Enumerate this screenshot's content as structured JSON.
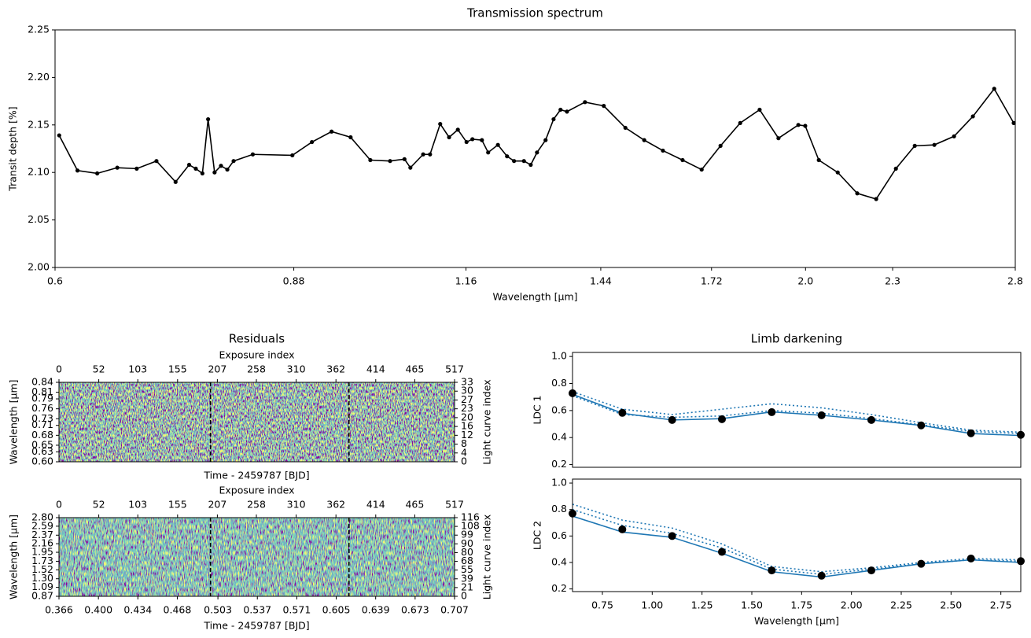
{
  "chart_data": [
    {
      "type": "line",
      "title": "Transmission spectrum",
      "xlabel": "Wavelength [μm]",
      "ylabel": "Transit depth [%]",
      "xscale": "log",
      "xlim": [
        0.6,
        2.8
      ],
      "xticks": [
        0.6,
        0.88,
        1.16,
        1.44,
        1.72,
        {
          "value": 2,
          "label": "2.0"
        },
        2.3,
        2.8
      ],
      "ylim": [
        2,
        2.25
      ],
      "yticks": [
        {
          "value": 2,
          "label": "2.00"
        },
        2.05,
        {
          "value": 2.1,
          "label": "2.10"
        },
        2.15,
        {
          "value": 2.2,
          "label": "2.20"
        },
        2.25
      ],
      "color": "#000000",
      "x": [
        0.604,
        0.622,
        0.642,
        0.663,
        0.684,
        0.706,
        0.728,
        0.744,
        0.752,
        0.76,
        0.767,
        0.775,
        0.783,
        0.791,
        0.799,
        0.824,
        0.878,
        0.906,
        0.935,
        0.964,
        0.995,
        1.027,
        1.051,
        1.061,
        1.083,
        1.095,
        1.113,
        1.129,
        1.145,
        1.161,
        1.172,
        1.19,
        1.202,
        1.221,
        1.239,
        1.253,
        1.273,
        1.287,
        1.3,
        1.318,
        1.335,
        1.35,
        1.364,
        1.404,
        1.447,
        1.498,
        1.544,
        1.591,
        1.642,
        1.693,
        1.745,
        1.801,
        1.858,
        1.915,
        1.977,
        1.999,
        2.043,
        2.106,
        2.173,
        2.24,
        2.312,
        2.383,
        2.459,
        2.538,
        2.616,
        2.707,
        2.793
      ],
      "values": [
        2.139,
        2.102,
        2.099,
        2.105,
        2.104,
        2.112,
        2.09,
        2.108,
        2.104,
        2.099,
        2.156,
        2.1,
        2.107,
        2.103,
        2.112,
        2.119,
        2.118,
        2.132,
        2.143,
        2.137,
        2.113,
        2.112,
        2.114,
        2.105,
        2.119,
        2.119,
        2.151,
        2.137,
        2.145,
        2.132,
        2.135,
        2.134,
        2.121,
        2.129,
        2.117,
        2.112,
        2.112,
        2.108,
        2.121,
        2.134,
        2.156,
        2.166,
        2.164,
        2.174,
        2.17,
        2.147,
        2.134,
        2.123,
        2.113,
        2.103,
        2.128,
        2.152,
        2.166,
        2.136,
        2.15,
        2.149,
        2.113,
        2.1,
        2.078,
        2.072,
        2.104,
        2.128,
        2.129,
        2.138,
        2.159,
        2.188,
        2.152
      ]
    },
    {
      "type": "heatmap",
      "title": "Residuals",
      "xlabel": "Time - 2459787 [BJD]",
      "x2label": "Exposure index",
      "ylabel": "Wavelength [μm]",
      "y2label": "Light curve index",
      "x2lim": [
        0,
        517
      ],
      "x2ticks": [
        0,
        52,
        103,
        155,
        207,
        258,
        310,
        362,
        414,
        465,
        517
      ],
      "ylim": [
        0.6,
        0.84
      ],
      "yticks": [
        {
          "value": 0.6,
          "label": "0.60"
        },
        0.63,
        0.65,
        0.68,
        0.71,
        0.73,
        0.76,
        0.79,
        0.81,
        0.84
      ],
      "y2ticks": [
        0,
        4,
        8,
        12,
        16,
        20,
        23,
        27,
        30,
        33
      ],
      "vlines": [
        198,
        379
      ]
    },
    {
      "type": "heatmap",
      "xlabel": "Time - 2459787 [BJD]",
      "x2label": "Exposure index",
      "ylabel": "Wavelength [μm]",
      "y2label": "Light curve index",
      "xlim": [
        0.366,
        0.707
      ],
      "xticks": [
        0.366,
        {
          "value": 0.4,
          "label": "0.400"
        },
        0.434,
        0.468,
        0.503,
        0.537,
        0.571,
        0.605,
        0.639,
        0.673,
        0.707
      ],
      "x2lim": [
        0,
        517
      ],
      "x2ticks": [
        0,
        52,
        103,
        155,
        207,
        258,
        310,
        362,
        414,
        465,
        517
      ],
      "ylim": [
        0.87,
        2.8
      ],
      "yticks": [
        0.87,
        1.09,
        {
          "value": 1.3,
          "label": "1.30"
        },
        1.52,
        1.73,
        1.95,
        2.16,
        2.37,
        2.59,
        {
          "value": 2.8,
          "label": "2.80"
        }
      ],
      "y2ticks": [
        0,
        21,
        39,
        55,
        68,
        80,
        90,
        99,
        108,
        116
      ],
      "vlines": [
        198,
        379
      ]
    },
    {
      "type": "line",
      "title": "Limb darkening",
      "ylabel": "LDC 1",
      "xlim": [
        0.6,
        2.85
      ],
      "ylim": [
        0.18,
        1.03
      ],
      "yticks": [
        0.2,
        0.4,
        0.6,
        0.8,
        {
          "value": 1,
          "label": "1.0"
        }
      ],
      "x": [
        0.6,
        0.85,
        1.1,
        1.35,
        1.6,
        1.85,
        2.1,
        2.35,
        2.6,
        2.85
      ],
      "series": [
        {
          "style": "dotted",
          "color": "#1f77b4",
          "values": [
            0.74,
            0.61,
            0.57,
            0.61,
            0.65,
            0.62,
            0.57,
            0.51,
            0.455,
            0.44
          ]
        },
        {
          "style": "dotted",
          "color": "#1f77b4",
          "values": [
            0.71,
            0.57,
            0.55,
            0.56,
            0.6,
            0.58,
            0.54,
            0.495,
            0.445,
            0.43
          ]
        },
        {
          "style": "solid",
          "color": "#1f77b4",
          "values": [
            0.72,
            0.58,
            0.53,
            0.54,
            0.59,
            0.565,
            0.53,
            0.49,
            0.43,
            0.415
          ]
        },
        {
          "style": "markers",
          "color": "#000000",
          "values": [
            0.728,
            0.583,
            0.53,
            0.536,
            0.588,
            0.565,
            0.53,
            0.49,
            0.432,
            0.42
          ]
        }
      ]
    },
    {
      "type": "line",
      "xlabel": "Wavelength [μm]",
      "ylabel": "LDC 2",
      "xlim": [
        0.6,
        2.85
      ],
      "ylim": [
        0.18,
        1.03
      ],
      "xticks": [
        0.75,
        {
          "value": 1,
          "label": "1.00"
        },
        1.25,
        {
          "value": 1.5,
          "label": "1.50"
        },
        1.75,
        {
          "value": 2,
          "label": "2.00"
        },
        2.25,
        {
          "value": 2.5,
          "label": "2.50"
        },
        2.75
      ],
      "yticks": [
        0.2,
        0.4,
        0.6,
        0.8,
        {
          "value": 1,
          "label": "1.0"
        }
      ],
      "x": [
        0.6,
        0.85,
        1.1,
        1.35,
        1.6,
        1.85,
        2.1,
        2.35,
        2.6,
        2.85
      ],
      "series": [
        {
          "style": "dotted",
          "color": "#1f77b4",
          "values": [
            0.84,
            0.72,
            0.66,
            0.54,
            0.37,
            0.33,
            0.36,
            0.4,
            0.43,
            0.42
          ]
        },
        {
          "style": "dotted",
          "color": "#1f77b4",
          "values": [
            0.8,
            0.68,
            0.62,
            0.51,
            0.35,
            0.31,
            0.35,
            0.39,
            0.42,
            0.41
          ]
        },
        {
          "style": "solid",
          "color": "#1f77b4",
          "values": [
            0.75,
            0.63,
            0.59,
            0.47,
            0.33,
            0.29,
            0.34,
            0.39,
            0.42,
            0.4
          ]
        },
        {
          "style": "markers",
          "color": "#000000",
          "values": [
            0.77,
            0.65,
            0.6,
            0.48,
            0.34,
            0.3,
            0.34,
            0.39,
            0.43,
            0.41
          ]
        }
      ]
    }
  ]
}
